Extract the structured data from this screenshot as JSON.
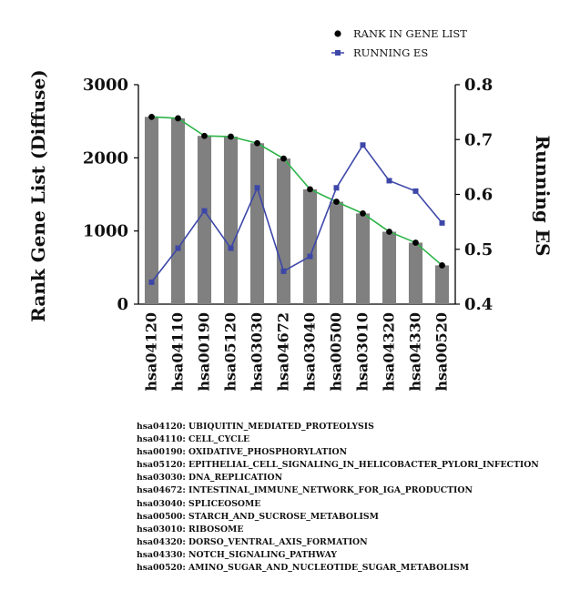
{
  "chart_data": {
    "type": "bar",
    "categories": [
      "hsa04120",
      "hsa04110",
      "hsa00190",
      "hsa05120",
      "hsa03030",
      "hsa04672",
      "hsa03040",
      "hsa00500",
      "hsa03010",
      "hsa04320",
      "hsa04330",
      "hsa00520"
    ],
    "series": [
      {
        "name": "RANK IN GENE LIST",
        "axis": "left",
        "values": [
          2560,
          2540,
          2300,
          2290,
          2200,
          1990,
          1570,
          1400,
          1240,
          990,
          840,
          530
        ],
        "bar_color": "#808080",
        "marker_color": "#000000",
        "line_color": "#2db34a"
      },
      {
        "name": "RUNNING ES",
        "axis": "right",
        "values": [
          0.44,
          0.502,
          0.57,
          0.502,
          0.612,
          0.46,
          0.487,
          0.612,
          0.69,
          0.625,
          0.606,
          0.548
        ],
        "color": "#3d47a8"
      }
    ],
    "ylabel": "Rank Gene List (Diffuse)",
    "y2label": "Running ES",
    "ylim": [
      0,
      3000
    ],
    "y2lim": [
      0.4,
      0.8
    ],
    "yticks": [
      "0",
      "1000",
      "2000",
      "3000"
    ],
    "y2ticks": [
      "0.4",
      "0.5",
      "0.6",
      "0.7",
      "0.8"
    ],
    "legend_position": "top-right",
    "grid": false
  },
  "notes": [
    "hsa04120: UBIQUITIN_MEDIATED_PROTEOLYSIS",
    "hsa04110: CELL_CYCLE",
    "hsa00190: OXIDATIVE_PHOSPHORYLATION",
    "hsa05120: EPITHELIAL_CELL_SIGNALING_IN_HELICOBACTER_PYLORI_INFECTION",
    "hsa03030: DNA_REPLICATION",
    "hsa04672: INTESTINAL_IMMUNE_NETWORK_FOR_IGA_PRODUCTION",
    "hsa03040: SPLICEOSOME",
    "hsa00500: STARCH_AND_SUCROSE_METABOLISM",
    "hsa03010: RIBOSOME",
    "hsa04320: DORSO_VENTRAL_AXIS_FORMATION",
    "hsa04330: NOTCH_SIGNALING_PATHWAY",
    "hsa00520: AMINO_SUGAR_AND_NUCLEOTIDE_SUGAR_METABOLISM"
  ]
}
